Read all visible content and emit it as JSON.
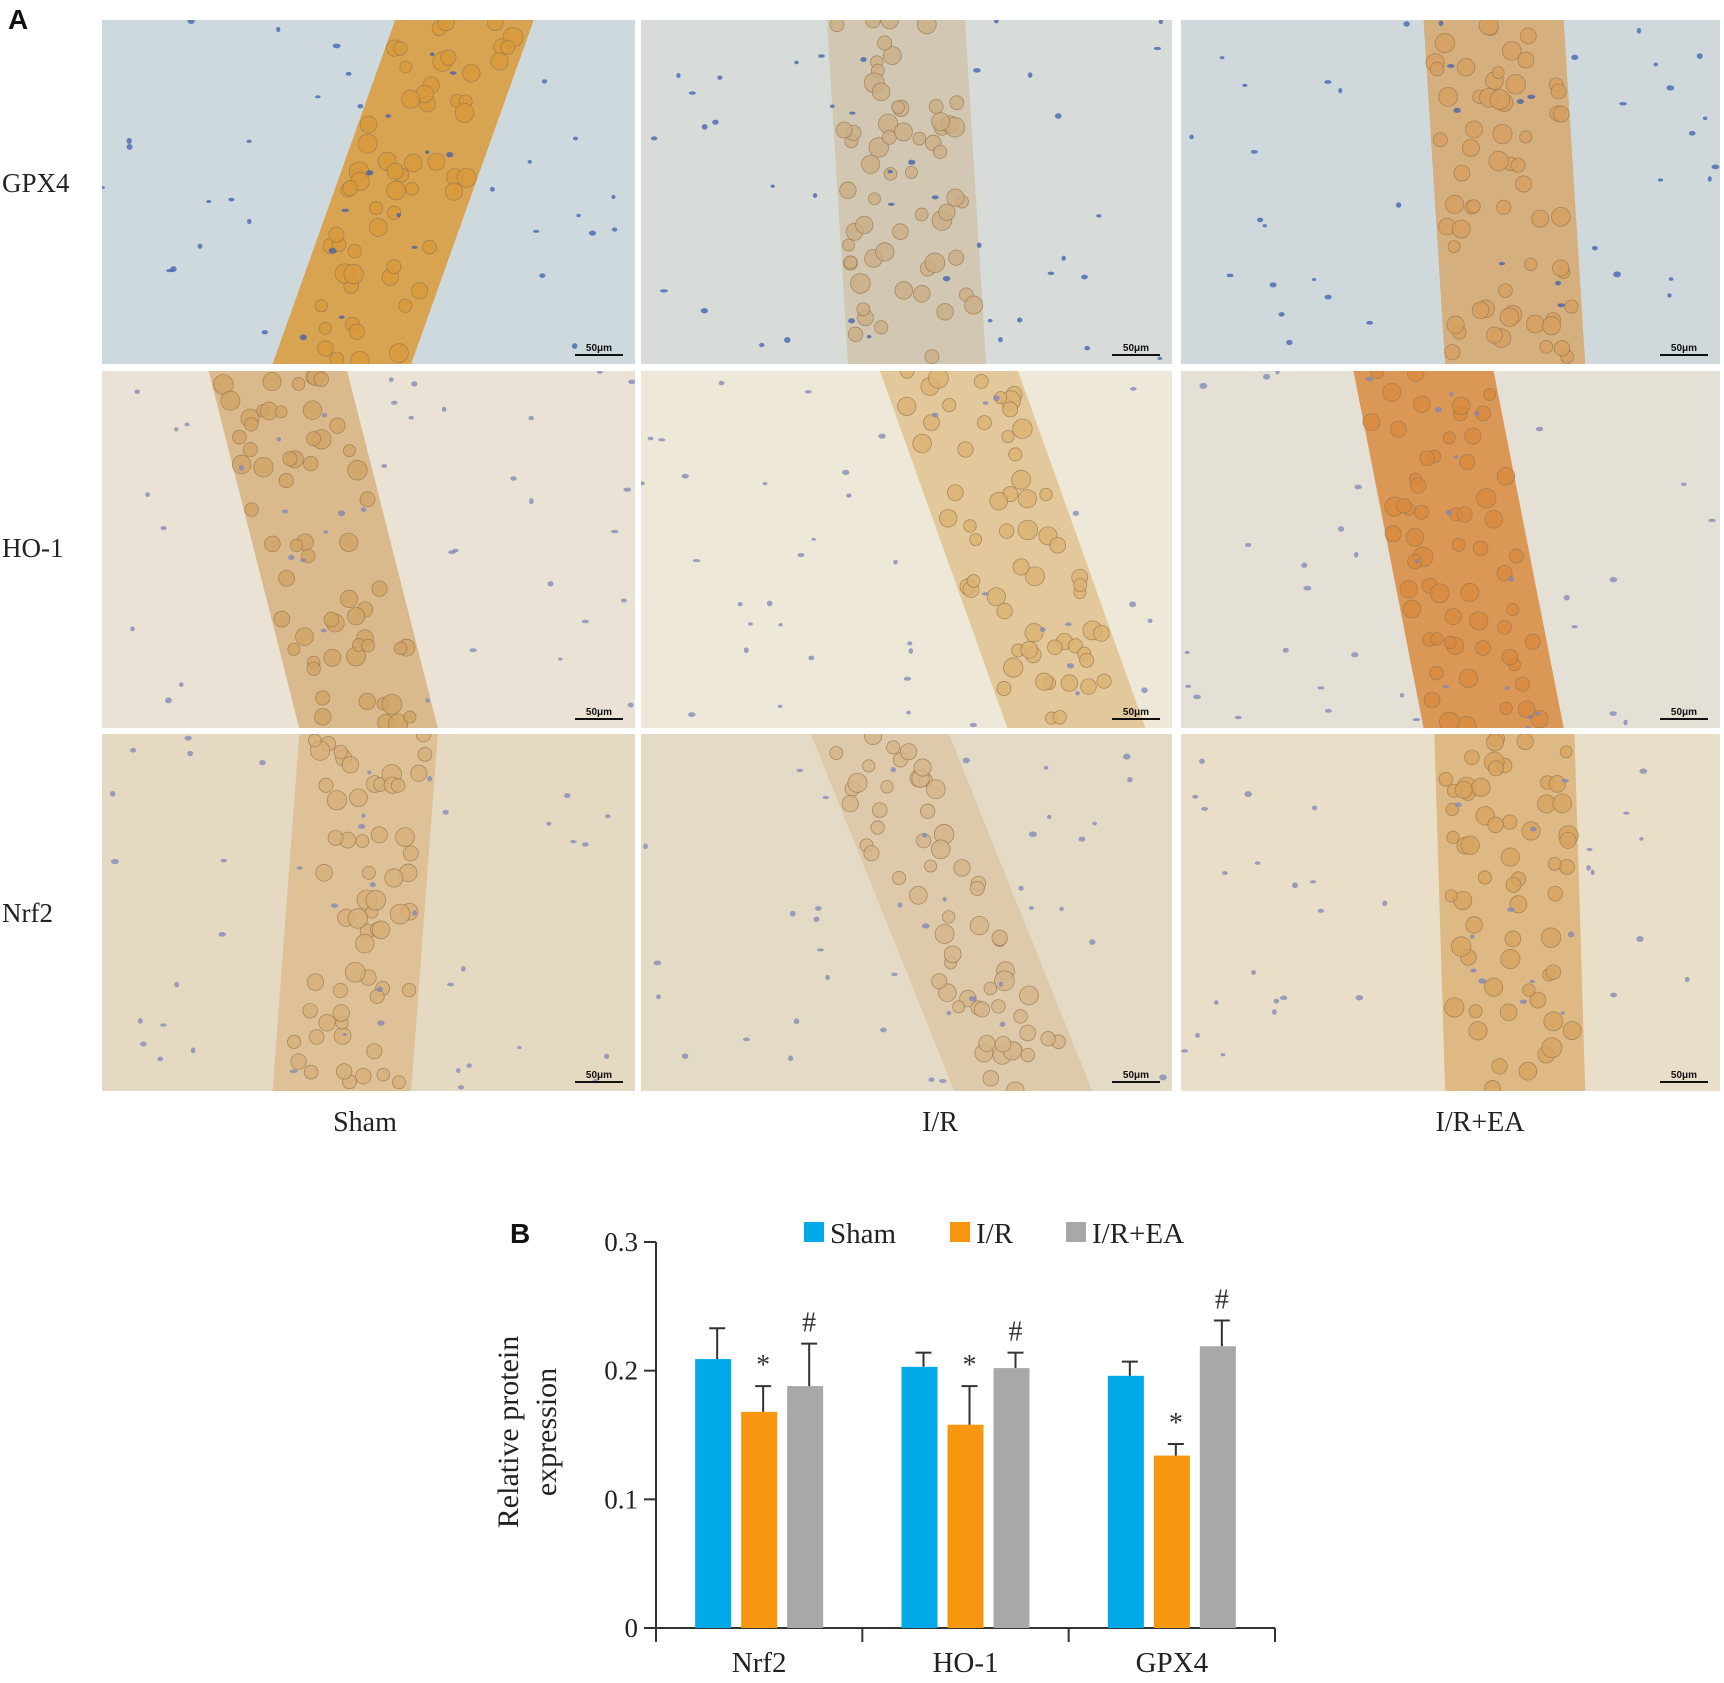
{
  "panel_a": {
    "letter": "A",
    "rows": [
      "GPX4",
      "HO-1",
      "Nrf2"
    ],
    "columns": [
      "Sham",
      "I/R",
      "I/R+EA"
    ],
    "scale_bar": "50μm"
  },
  "panel_b": {
    "letter": "B"
  },
  "chart_data": {
    "type": "bar",
    "title": "",
    "xlabel": "",
    "ylabel": "Relative protein expression",
    "ylim": [
      0,
      0.3
    ],
    "yticks": [
      0,
      0.1,
      0.2,
      0.3
    ],
    "ytick_labels": [
      "0",
      "0.1",
      "0.2",
      "0.3"
    ],
    "categories": [
      "Nrf2",
      "HO-1",
      "GPX4"
    ],
    "legend_position": "top",
    "series": [
      {
        "name": "Sham",
        "color": "#00a9e8",
        "values": [
          0.209,
          0.203,
          0.196
        ],
        "errors": [
          0.024,
          0.011,
          0.011
        ],
        "annotations": [
          "",
          "",
          ""
        ]
      },
      {
        "name": "I/R",
        "color": "#f7960f",
        "values": [
          0.168,
          0.158,
          0.134
        ],
        "errors": [
          0.02,
          0.03,
          0.009
        ],
        "annotations": [
          "*",
          "*",
          "*"
        ]
      },
      {
        "name": "I/R+EA",
        "color": "#a8a8a8",
        "values": [
          0.188,
          0.202,
          0.219
        ],
        "errors": [
          0.033,
          0.012,
          0.02
        ],
        "annotations": [
          "#",
          "#",
          "#"
        ]
      }
    ]
  }
}
